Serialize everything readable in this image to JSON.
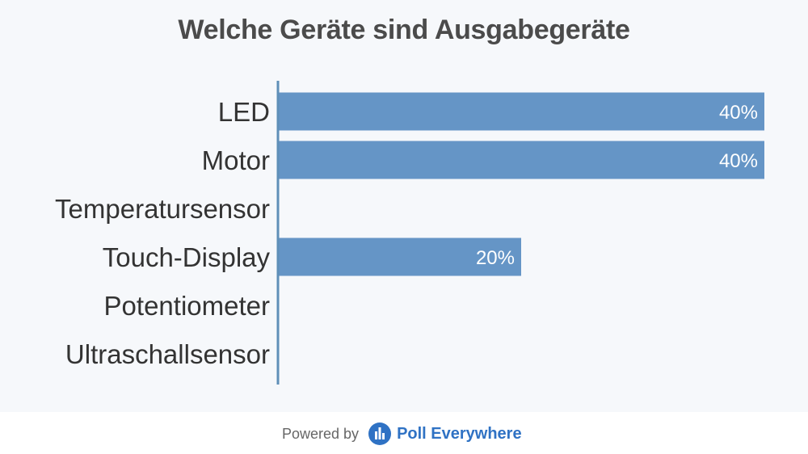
{
  "chart_data": {
    "type": "bar",
    "orientation": "horizontal",
    "title": "Welche Geräte sind Ausgabegeräte",
    "categories": [
      "LED",
      "Motor",
      "Temperatursensor",
      "Touch-Display",
      "Potentiometer",
      "Ultraschallsensor"
    ],
    "values": [
      40,
      40,
      0,
      20,
      0,
      0
    ],
    "value_labels": [
      "40%",
      "40%",
      "",
      "20%",
      "",
      ""
    ],
    "xlim": [
      0,
      40
    ],
    "bar_color": "#6595c6",
    "axis_color": "#5f8fb8",
    "grid": false
  },
  "footer": {
    "powered_by": "Powered by",
    "brand": "Poll Everywhere",
    "brand_color": "#2f72c4",
    "logo_icon": "poll-everywhere-logo-icon"
  }
}
